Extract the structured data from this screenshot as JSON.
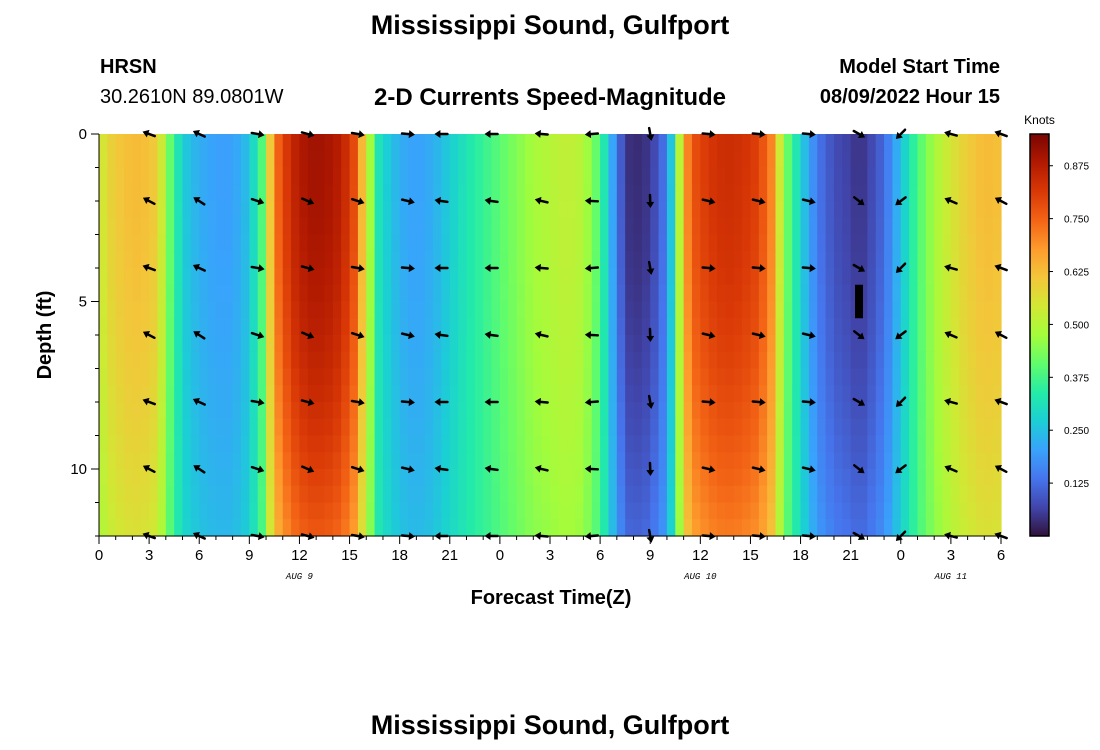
{
  "header": {
    "title": "Mississippi Sound, Gulfport",
    "station": "HRSN",
    "coordinates": "30.2610N  89.0801W",
    "subtitle": "2-D Currents Speed-Magnitude",
    "model_start_label": "Model Start Time",
    "model_start_value": "08/09/2022 Hour 15"
  },
  "footer": {
    "title_repeat": "Mississippi Sound, Gulfport"
  },
  "colormap": [
    "#30123b",
    "#4145ab",
    "#4675ed",
    "#39a2fc",
    "#1bcfd4",
    "#24eca6",
    "#61fc6c",
    "#a4fc3b",
    "#d1e834",
    "#f3c63a",
    "#fe9b2d",
    "#f36315",
    "#d93806",
    "#b11901",
    "#7a0403"
  ],
  "chart_data": {
    "type": "heatmap",
    "title": "2-D Currents Speed-Magnitude",
    "xlabel": "Forecast Time(Z)",
    "ylabel": "Depth (ft)",
    "x_range_hours": [
      0,
      54
    ],
    "ylim": [
      0,
      12
    ],
    "y_inverted": true,
    "x_ticks": [
      {
        "h": 0,
        "label": "0"
      },
      {
        "h": 3,
        "label": "3"
      },
      {
        "h": 6,
        "label": "6"
      },
      {
        "h": 9,
        "label": "9"
      },
      {
        "h": 12,
        "label": "12"
      },
      {
        "h": 15,
        "label": "15"
      },
      {
        "h": 18,
        "label": "18"
      },
      {
        "h": 21,
        "label": "21"
      },
      {
        "h": 24,
        "label": "0"
      },
      {
        "h": 27,
        "label": "3"
      },
      {
        "h": 30,
        "label": "6"
      },
      {
        "h": 33,
        "label": "9"
      },
      {
        "h": 36,
        "label": "12"
      },
      {
        "h": 39,
        "label": "15"
      },
      {
        "h": 42,
        "label": "18"
      },
      {
        "h": 45,
        "label": "21"
      },
      {
        "h": 48,
        "label": "0"
      },
      {
        "h": 51,
        "label": "3"
      },
      {
        "h": 54,
        "label": "6"
      }
    ],
    "date_labels": [
      {
        "h": 12,
        "label": "AUG 9"
      },
      {
        "h": 36,
        "label": "AUG 10"
      },
      {
        "h": 51,
        "label": "AUG 11"
      }
    ],
    "y_ticks": [
      {
        "v": 0,
        "label": "0"
      },
      {
        "v": 5,
        "label": "5"
      },
      {
        "v": 10,
        "label": "10"
      }
    ],
    "colorbar": {
      "label": "Knots",
      "min": 0,
      "max": 0.95,
      "ticks": [
        0.125,
        0.25,
        0.375,
        0.5,
        0.625,
        0.75,
        0.875
      ],
      "tick_labels": [
        "0.125",
        "0.250",
        "0.375",
        "0.500",
        "0.625",
        "0.750",
        "0.875"
      ]
    },
    "speed_profile": {
      "hours": [
        0,
        0.5,
        1.5,
        2.5,
        3.5,
        4.2,
        5,
        6,
        7,
        8,
        9,
        9.8,
        10.5,
        11.5,
        12.5,
        13.5,
        14.5,
        15.3,
        16,
        16.8,
        18,
        19,
        20,
        21,
        22,
        23,
        24,
        25,
        26,
        27,
        28,
        29,
        30,
        31,
        31.5,
        32,
        33,
        34,
        34.5,
        35,
        35.5,
        36.5,
        37.5,
        38.5,
        39.5,
        40.3,
        41,
        42,
        43,
        44,
        45,
        45.5,
        46,
        47,
        48,
        49,
        50,
        51,
        52,
        53,
        54
      ],
      "surface_knots": [
        0.52,
        0.58,
        0.62,
        0.63,
        0.6,
        0.42,
        0.27,
        0.22,
        0.2,
        0.2,
        0.25,
        0.4,
        0.72,
        0.85,
        0.9,
        0.9,
        0.87,
        0.78,
        0.55,
        0.3,
        0.22,
        0.2,
        0.22,
        0.27,
        0.32,
        0.36,
        0.4,
        0.44,
        0.48,
        0.5,
        0.52,
        0.5,
        0.38,
        0.15,
        0.05,
        0.03,
        0.05,
        0.15,
        0.36,
        0.65,
        0.77,
        0.82,
        0.84,
        0.83,
        0.8,
        0.7,
        0.45,
        0.28,
        0.14,
        0.08,
        0.06,
        0.04,
        0.06,
        0.12,
        0.25,
        0.38,
        0.48,
        0.55,
        0.6,
        0.63,
        0.62
      ]
    },
    "vectors": {
      "depths_ft": [
        0,
        2,
        4,
        6,
        8,
        10,
        12
      ],
      "hours": [
        3,
        6,
        9.5,
        12.5,
        15.5,
        18.5,
        20.5,
        23.5,
        26.5,
        29.5,
        33,
        36.5,
        39.5,
        42.5,
        45.5,
        48,
        51,
        54
      ],
      "directions_deg": [
        -160,
        -155,
        10,
        15,
        10,
        5,
        180,
        180,
        185,
        175,
        80,
        5,
        5,
        5,
        30,
        135,
        -165,
        -160
      ]
    },
    "marker": {
      "h": 45.5,
      "depth_from_ft": 4.5,
      "depth_to_ft": 5.5
    }
  }
}
